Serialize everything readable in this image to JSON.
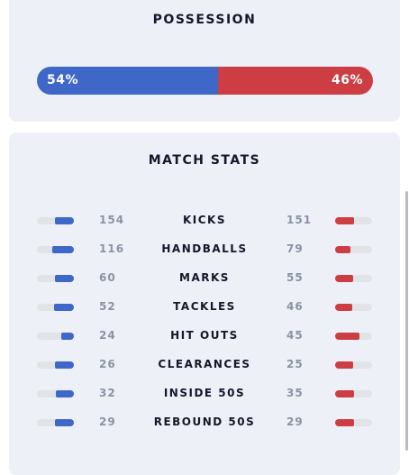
{
  "possession": {
    "title": "POSSESSION",
    "home_pct": "54%",
    "away_pct": "46%",
    "home_fraction": 0.54,
    "home_color": "#3f67c8",
    "away_color": "#cc3e43"
  },
  "match_stats": {
    "title": "MATCH STATS",
    "rows": [
      {
        "label": "KICKS",
        "home": "154",
        "away": "151",
        "home_fill": 0.5,
        "away_fill": 0.5
      },
      {
        "label": "HANDBALLS",
        "home": "116",
        "away": "79",
        "home_fill": 0.59,
        "away_fill": 0.41
      },
      {
        "label": "MARKS",
        "home": "60",
        "away": "55",
        "home_fill": 0.52,
        "away_fill": 0.48
      },
      {
        "label": "TACKLES",
        "home": "52",
        "away": "46",
        "home_fill": 0.53,
        "away_fill": 0.47
      },
      {
        "label": "HIT OUTS",
        "home": "24",
        "away": "45",
        "home_fill": 0.35,
        "away_fill": 0.65
      },
      {
        "label": "CLEARANCES",
        "home": "26",
        "away": "25",
        "home_fill": 0.51,
        "away_fill": 0.49
      },
      {
        "label": "INSIDE 50S",
        "home": "32",
        "away": "35",
        "home_fill": 0.48,
        "away_fill": 0.52
      },
      {
        "label": "REBOUND 50S",
        "home": "29",
        "away": "29",
        "home_fill": 0.5,
        "away_fill": 0.5
      }
    ]
  }
}
